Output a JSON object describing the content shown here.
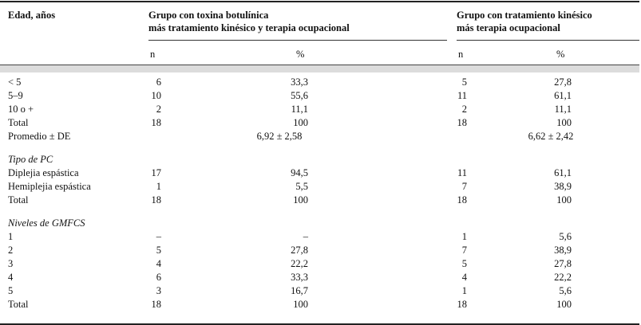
{
  "header": {
    "col0": "Edad, años",
    "group1_line1": "Grupo con toxina botulínica",
    "group1_line2": "más tratamiento kinésico y terapia ocupacional",
    "group2_line1": "Grupo con tratamiento kinésico",
    "group2_line2": "más terapia ocupacional",
    "n1": "n",
    "pct1": "%",
    "n2": "n",
    "pct2": "%"
  },
  "rows": [
    {
      "label": "< 5",
      "n1": "6",
      "p1": "33,3",
      "n2": "5",
      "p2": "27,8"
    },
    {
      "label": "5–9",
      "n1": "10",
      "p1": "55,6",
      "n2": "11",
      "p2": "61,1"
    },
    {
      "label": "10 o +",
      "n1": "2",
      "p1": "11,1",
      "n2": "2",
      "p2": "11,1"
    },
    {
      "label": "Total",
      "n1": "18",
      "p1": "100",
      "n2": "18",
      "p2": "100"
    },
    {
      "label": "Promedio ± DE",
      "m1": "6,92 ± 2,58",
      "m2": "6,62 ± 2,42"
    },
    {
      "label": "Tipo de PC",
      "section": true
    },
    {
      "label": "Diplejia espástica",
      "n1": "17",
      "p1": "94,5",
      "n2": "11",
      "p2": "61,1"
    },
    {
      "label": "Hemiplejia espástica",
      "n1": "1",
      "p1": "5,5",
      "n2": "7",
      "p2": "38,9"
    },
    {
      "label": "Total",
      "n1": "18",
      "p1": "100",
      "n2": "18",
      "p2": "100"
    },
    {
      "label": "Niveles de GMFCS",
      "section": true
    },
    {
      "label": "1",
      "n1": "–",
      "p1": "–",
      "n2": "1",
      "p2": "5,6"
    },
    {
      "label": "2",
      "n1": "5",
      "p1": "27,8",
      "n2": "7",
      "p2": "38,9"
    },
    {
      "label": "3",
      "n1": "4",
      "p1": "22,2",
      "n2": "5",
      "p2": "27,8"
    },
    {
      "label": "4",
      "n1": "6",
      "p1": "33,3",
      "n2": "4",
      "p2": "22,2"
    },
    {
      "label": "5",
      "n1": "3",
      "p1": "16,7",
      "n2": "1",
      "p2": "5,6"
    },
    {
      "label": "Total",
      "n1": "18",
      "p1": "100",
      "n2": "18",
      "p2": "100"
    }
  ]
}
